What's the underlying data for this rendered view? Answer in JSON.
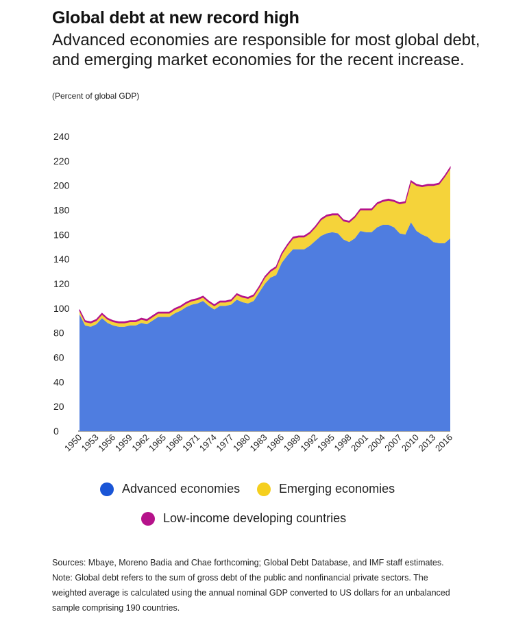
{
  "chart_data": {
    "type": "area",
    "stacked": true,
    "title": "Global debt at new record high",
    "subtitle": "Advanced economies are responsible for most global debt, and emerging market economies for the recent increase.",
    "units_label": "(Percent of global GDP)",
    "ylim": [
      0,
      240
    ],
    "yticks": [
      "0",
      "20",
      "40",
      "60",
      "80",
      "100",
      "120",
      "140",
      "160",
      "180",
      "200",
      "220",
      "240"
    ],
    "xtick_labels": [
      "1950",
      "1953",
      "1956",
      "1959",
      "1962",
      "1965",
      "1968",
      "1971",
      "1974",
      "1977",
      "1980",
      "1983",
      "1986",
      "1989",
      "1992",
      "1995",
      "1998",
      "2001",
      "2004",
      "2007",
      "2010",
      "2013",
      "2016"
    ],
    "x": [
      1950,
      1951,
      1952,
      1953,
      1954,
      1955,
      1956,
      1957,
      1958,
      1959,
      1960,
      1961,
      1962,
      1963,
      1964,
      1965,
      1966,
      1967,
      1968,
      1969,
      1970,
      1971,
      1972,
      1973,
      1974,
      1975,
      1976,
      1977,
      1978,
      1979,
      1980,
      1981,
      1982,
      1983,
      1984,
      1985,
      1986,
      1987,
      1988,
      1989,
      1990,
      1991,
      1992,
      1993,
      1994,
      1995,
      1996,
      1997,
      1998,
      1999,
      2000,
      2001,
      2002,
      2003,
      2004,
      2005,
      2006,
      2007,
      2008,
      2009,
      2010,
      2011,
      2012,
      2013,
      2014,
      2015,
      2016
    ],
    "series": [
      {
        "name": "Advanced economies",
        "color": "#4f7de0",
        "values": [
          95,
          86,
          85,
          87,
          92,
          88,
          86,
          85,
          85,
          86,
          86,
          88,
          87,
          90,
          93,
          93,
          93,
          96,
          98,
          101,
          103,
          104,
          106,
          102,
          99,
          102,
          102,
          103,
          107,
          105,
          104,
          106,
          113,
          120,
          125,
          127,
          137,
          143,
          148,
          148,
          148,
          151,
          155,
          159,
          161,
          162,
          161,
          156,
          154,
          157,
          163,
          162,
          162,
          166,
          168,
          168,
          166,
          161,
          160,
          170,
          163,
          160,
          158,
          154,
          153,
          153,
          157
        ]
      },
      {
        "name": "Emerging economies",
        "color": "#f5d33a",
        "values": [
          3,
          3,
          3,
          3,
          3,
          3,
          3,
          3,
          3,
          3,
          3,
          3,
          3,
          3,
          3,
          3,
          3,
          3,
          3,
          3,
          3,
          3,
          3,
          3,
          3,
          3,
          3,
          3,
          4,
          4,
          4,
          4,
          4,
          5,
          5,
          6,
          7,
          8,
          9,
          10,
          10,
          10,
          11,
          13,
          14,
          14,
          15,
          15,
          16,
          17,
          17,
          18,
          18,
          19,
          19,
          20,
          21,
          24,
          26,
          33,
          37,
          39,
          42,
          46,
          48,
          54,
          57
        ]
      },
      {
        "name": "Low-income developing countries",
        "color": "#b5128a",
        "values": [
          1,
          1,
          1,
          1,
          1,
          1,
          1,
          1,
          1,
          1,
          1,
          1,
          1,
          1,
          1,
          1,
          1,
          1,
          1,
          1,
          1,
          1,
          1,
          1,
          1,
          1,
          1,
          1,
          1,
          1,
          1,
          1,
          1,
          1,
          1,
          1,
          1,
          1,
          1,
          1,
          1,
          1,
          1,
          1,
          1,
          1,
          1,
          1,
          1,
          1,
          1,
          1,
          1,
          1,
          1,
          1,
          1,
          1,
          1,
          1,
          1,
          1,
          1,
          1,
          1,
          1,
          1
        ]
      }
    ]
  },
  "legend": {
    "advanced": "Advanced economies",
    "emerging": "Emerging economies",
    "low_income": "Low-income developing countries"
  },
  "notes": {
    "sources": "Sources: Mbaye, Moreno Badia and Chae forthcoming; Global Debt Database, and IMF staff estimates.",
    "note": "Note: Global debt refers to the sum of gross debt of the public and nonfinancial private sectors. The weighted average is calculated using the annual nominal GDP converted to US dollars for an unbalanced sample comprising 190 countries."
  }
}
